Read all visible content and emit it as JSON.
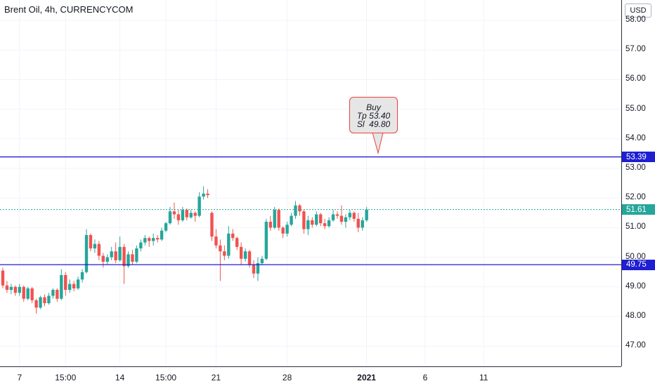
{
  "header": {
    "title": "Brent Oil, 4h, CURRENCYCOM",
    "currency_button": "USD"
  },
  "callout": {
    "lines": [
      "Buy",
      "Tp 53.40",
      "Sl  49.80"
    ]
  },
  "price_tags": {
    "upper_line": "53.39",
    "current": "51.61",
    "lower_line": "49.75"
  },
  "colors": {
    "up": "#26a69a",
    "down": "#ef5350",
    "hline": "#1e1ed2",
    "current": "#26a69a",
    "callout_border": "#e8413c"
  },
  "chart_data": {
    "type": "candlestick",
    "title": "Brent Oil, 4h, CURRENCYCOM",
    "y_ticks": [
      "58.00",
      "57.00",
      "56.00",
      "55.00",
      "54.00",
      "53.00",
      "52.00",
      "51.00",
      "50.00",
      "49.00",
      "48.00",
      "47.00"
    ],
    "ylim": [
      46.2,
      58.4
    ],
    "x_ticks": [
      {
        "label": "7",
        "i": 4,
        "bold": false
      },
      {
        "label": "15:00",
        "i": 15,
        "bold": false
      },
      {
        "label": "14",
        "i": 28,
        "bold": false
      },
      {
        "label": "15:00",
        "i": 39,
        "bold": false
      },
      {
        "label": "21",
        "i": 51,
        "bold": false
      },
      {
        "label": "28",
        "i": 68,
        "bold": false
      },
      {
        "label": "2021",
        "i": 87,
        "bold": true
      },
      {
        "label": "6",
        "i": 101,
        "bold": false
      },
      {
        "label": "11",
        "i": 115,
        "bold": false
      }
    ],
    "horizontal_lines": [
      53.39,
      49.75
    ],
    "current_price": 51.61,
    "grid": true,
    "candles": [
      [
        49.55,
        49.65,
        48.95,
        49.05
      ],
      [
        49.05,
        49.2,
        48.8,
        48.9
      ],
      [
        48.9,
        49.1,
        48.75,
        49.0
      ],
      [
        49.0,
        49.05,
        48.7,
        48.8
      ],
      [
        48.8,
        49.1,
        48.7,
        49.0
      ],
      [
        49.0,
        49.05,
        48.5,
        48.6
      ],
      [
        48.6,
        49.0,
        48.55,
        48.95
      ],
      [
        48.95,
        49.0,
        48.45,
        48.55
      ],
      [
        48.55,
        48.6,
        48.1,
        48.3
      ],
      [
        48.3,
        48.7,
        48.25,
        48.65
      ],
      [
        48.65,
        48.75,
        48.35,
        48.45
      ],
      [
        48.45,
        48.8,
        48.4,
        48.7
      ],
      [
        48.7,
        48.95,
        48.6,
        48.9
      ],
      [
        48.9,
        48.95,
        48.5,
        48.6
      ],
      [
        48.6,
        49.6,
        48.55,
        49.4
      ],
      [
        49.4,
        49.5,
        48.7,
        48.9
      ],
      [
        48.9,
        49.25,
        48.8,
        49.1
      ],
      [
        49.1,
        49.2,
        48.85,
        48.95
      ],
      [
        48.95,
        49.35,
        48.9,
        49.25
      ],
      [
        49.25,
        49.6,
        49.15,
        49.5
      ],
      [
        49.5,
        50.95,
        49.45,
        50.75
      ],
      [
        50.75,
        50.8,
        50.2,
        50.3
      ],
      [
        50.3,
        50.6,
        50.15,
        50.45
      ],
      [
        50.45,
        50.55,
        49.9,
        50.05
      ],
      [
        50.05,
        50.15,
        49.65,
        49.85
      ],
      [
        49.85,
        50.1,
        49.75,
        50.0
      ],
      [
        50.0,
        50.35,
        49.9,
        50.2
      ],
      [
        50.2,
        50.5,
        49.8,
        49.9
      ],
      [
        49.9,
        50.7,
        49.85,
        50.35
      ],
      [
        50.35,
        50.45,
        49.1,
        49.7
      ],
      [
        49.7,
        50.2,
        49.65,
        50.1
      ],
      [
        50.1,
        50.25,
        49.75,
        49.85
      ],
      [
        49.85,
        50.4,
        49.8,
        50.3
      ],
      [
        50.3,
        50.6,
        50.2,
        50.5
      ],
      [
        50.5,
        50.75,
        50.4,
        50.65
      ],
      [
        50.65,
        50.7,
        50.35,
        50.55
      ],
      [
        50.55,
        50.8,
        50.4,
        50.65
      ],
      [
        50.65,
        50.75,
        50.5,
        50.6
      ],
      [
        50.6,
        51.0,
        50.55,
        50.9
      ],
      [
        50.9,
        51.2,
        50.85,
        51.15
      ],
      [
        51.15,
        51.7,
        51.1,
        51.55
      ],
      [
        51.55,
        51.85,
        51.3,
        51.45
      ],
      [
        51.45,
        51.6,
        51.1,
        51.25
      ],
      [
        51.25,
        51.7,
        51.2,
        51.6
      ],
      [
        51.6,
        51.65,
        51.25,
        51.35
      ],
      [
        51.35,
        51.6,
        51.3,
        51.5
      ],
      [
        51.5,
        51.55,
        51.2,
        51.4
      ],
      [
        51.4,
        52.2,
        51.35,
        52.05
      ],
      [
        52.05,
        52.4,
        51.95,
        52.15
      ],
      [
        52.15,
        52.3,
        52.0,
        52.1
      ],
      [
        51.5,
        51.55,
        50.55,
        50.7
      ],
      [
        50.7,
        50.95,
        50.3,
        50.4
      ],
      [
        50.4,
        50.6,
        49.2,
        50.2
      ],
      [
        50.2,
        50.4,
        49.9,
        50.05
      ],
      [
        50.05,
        51.05,
        49.95,
        50.8
      ],
      [
        50.8,
        50.95,
        50.55,
        50.65
      ],
      [
        50.65,
        50.7,
        50.25,
        50.35
      ],
      [
        50.35,
        50.5,
        49.75,
        49.95
      ],
      [
        49.95,
        50.3,
        49.85,
        50.2
      ],
      [
        50.2,
        50.25,
        49.65,
        49.75
      ],
      [
        49.75,
        49.9,
        49.3,
        49.45
      ],
      [
        49.45,
        50.0,
        49.2,
        49.8
      ],
      [
        49.8,
        50.05,
        49.75,
        49.95
      ],
      [
        49.95,
        51.3,
        49.9,
        51.2
      ],
      [
        51.2,
        51.4,
        50.9,
        51.0
      ],
      [
        51.0,
        51.7,
        50.95,
        51.6
      ],
      [
        51.6,
        51.65,
        50.9,
        51.0
      ],
      [
        51.0,
        51.05,
        50.65,
        50.8
      ],
      [
        50.8,
        51.2,
        50.7,
        51.1
      ],
      [
        51.1,
        51.5,
        51.05,
        51.4
      ],
      [
        51.4,
        51.9,
        51.3,
        51.75
      ],
      [
        51.75,
        51.8,
        51.4,
        51.55
      ],
      [
        51.55,
        51.6,
        50.8,
        50.95
      ],
      [
        50.95,
        51.4,
        50.75,
        51.25
      ],
      [
        51.25,
        51.35,
        51.0,
        51.1
      ],
      [
        51.1,
        51.55,
        51.05,
        51.45
      ],
      [
        51.45,
        51.5,
        51.05,
        51.15
      ],
      [
        51.15,
        51.3,
        50.95,
        51.05
      ],
      [
        51.05,
        51.35,
        51.0,
        51.25
      ],
      [
        51.25,
        51.6,
        51.2,
        51.45
      ],
      [
        51.45,
        51.55,
        51.3,
        51.4
      ],
      [
        51.4,
        51.75,
        51.1,
        51.2
      ],
      [
        51.2,
        51.45,
        51.0,
        51.35
      ],
      [
        51.35,
        51.6,
        51.25,
        51.5
      ],
      [
        51.5,
        51.55,
        51.2,
        51.3
      ],
      [
        51.3,
        51.5,
        50.85,
        51.0
      ],
      [
        51.0,
        51.35,
        50.9,
        51.25
      ],
      [
        51.25,
        51.7,
        51.2,
        51.61
      ]
    ]
  }
}
